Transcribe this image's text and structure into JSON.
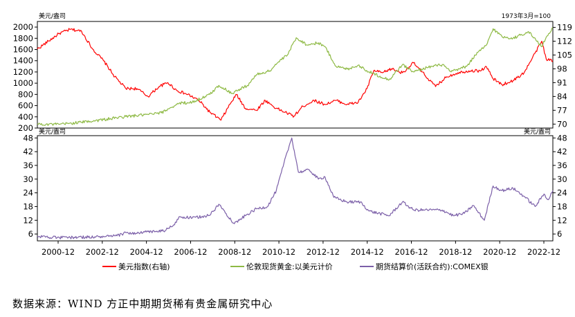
{
  "source_label": "数据来源：WIND 方正中期期货稀有贵金属研究中心",
  "chart_data": [
    {
      "type": "line",
      "panel": "top",
      "left_unit": "美元/盎司",
      "right_unit": "1973年3月=100",
      "left_axis": {
        "ylim": [
          200,
          2100
        ],
        "ticks": [
          200,
          400,
          600,
          800,
          1000,
          1200,
          1400,
          1600,
          1800,
          2000
        ]
      },
      "right_axis": {
        "ylim": [
          68,
          122
        ],
        "ticks": [
          70,
          77,
          84,
          91,
          98,
          105,
          112,
          119
        ]
      },
      "x_ticks": [
        "2000-12",
        "2002-12",
        "2004-12",
        "2006-12",
        "2008-12",
        "2010-12",
        "2012-12",
        "2014-12",
        "2016-12",
        "2018-12",
        "2020-12",
        "2022-12"
      ],
      "xlim": [
        2000.0,
        2023.3
      ],
      "series": [
        {
          "name": "美元指数(右轴)",
          "axis": "right",
          "color": "#ff0000",
          "points": [
            [
              2000.0,
              108
            ],
            [
              2000.5,
              112
            ],
            [
              2001.0,
              116
            ],
            [
              2001.5,
              118
            ],
            [
              2002.0,
              117
            ],
            [
              2002.5,
              108
            ],
            [
              2003.0,
              102
            ],
            [
              2003.5,
              94
            ],
            [
              2004.0,
              88
            ],
            [
              2004.5,
              88
            ],
            [
              2005.0,
              84
            ],
            [
              2005.5,
              89
            ],
            [
              2005.9,
              91
            ],
            [
              2006.3,
              87
            ],
            [
              2006.8,
              85
            ],
            [
              2007.3,
              82
            ],
            [
              2007.8,
              76
            ],
            [
              2008.3,
              72
            ],
            [
              2008.7,
              80
            ],
            [
              2009.0,
              85
            ],
            [
              2009.4,
              78
            ],
            [
              2009.9,
              77
            ],
            [
              2010.3,
              82
            ],
            [
              2010.8,
              78
            ],
            [
              2011.2,
              76
            ],
            [
              2011.6,
              74
            ],
            [
              2012.0,
              79
            ],
            [
              2012.5,
              82
            ],
            [
              2013.0,
              80
            ],
            [
              2013.5,
              82
            ],
            [
              2014.0,
              80
            ],
            [
              2014.5,
              81
            ],
            [
              2014.9,
              88
            ],
            [
              2015.2,
              97
            ],
            [
              2015.6,
              96
            ],
            [
              2016.0,
              98
            ],
            [
              2016.5,
              96
            ],
            [
              2017.0,
              101
            ],
            [
              2017.5,
              95
            ],
            [
              2018.0,
              89
            ],
            [
              2018.5,
              94
            ],
            [
              2019.0,
              96
            ],
            [
              2019.5,
              97
            ],
            [
              2020.0,
              97
            ],
            [
              2020.3,
              99
            ],
            [
              2020.6,
              93
            ],
            [
              2021.0,
              90
            ],
            [
              2021.5,
              92
            ],
            [
              2022.0,
              96
            ],
            [
              2022.5,
              106
            ],
            [
              2022.8,
              112
            ],
            [
              2023.0,
              103
            ],
            [
              2023.3,
              102
            ]
          ]
        },
        {
          "name": "伦敦现货黄金:以美元计价",
          "axis": "left",
          "color": "#8db943",
          "points": [
            [
              2000.0,
              272
            ],
            [
              2001.0,
              265
            ],
            [
              2002.0,
              305
            ],
            [
              2003.0,
              350
            ],
            [
              2004.0,
              405
            ],
            [
              2005.0,
              440
            ],
            [
              2005.6,
              470
            ],
            [
              2006.0,
              560
            ],
            [
              2006.4,
              640
            ],
            [
              2007.0,
              660
            ],
            [
              2007.8,
              800
            ],
            [
              2008.2,
              960
            ],
            [
              2008.8,
              820
            ],
            [
              2009.5,
              960
            ],
            [
              2009.9,
              1150
            ],
            [
              2010.5,
              1220
            ],
            [
              2010.9,
              1380
            ],
            [
              2011.3,
              1500
            ],
            [
              2011.7,
              1810
            ],
            [
              2012.2,
              1680
            ],
            [
              2012.7,
              1720
            ],
            [
              2013.0,
              1650
            ],
            [
              2013.5,
              1300
            ],
            [
              2014.0,
              1250
            ],
            [
              2014.5,
              1320
            ],
            [
              2015.0,
              1200
            ],
            [
              2015.9,
              1060
            ],
            [
              2016.5,
              1330
            ],
            [
              2017.0,
              1200
            ],
            [
              2017.6,
              1280
            ],
            [
              2018.3,
              1330
            ],
            [
              2018.7,
              1200
            ],
            [
              2019.4,
              1300
            ],
            [
              2019.8,
              1500
            ],
            [
              2020.3,
              1680
            ],
            [
              2020.6,
              1970
            ],
            [
              2021.0,
              1830
            ],
            [
              2021.5,
              1800
            ],
            [
              2022.2,
              1920
            ],
            [
              2022.8,
              1650
            ],
            [
              2023.0,
              1820
            ],
            [
              2023.3,
              1990
            ]
          ]
        }
      ]
    },
    {
      "type": "line",
      "panel": "bottom",
      "left_unit": "美元/盎司",
      "right_unit": "美元/盎司",
      "left_axis": {
        "ylim": [
          3,
          49
        ],
        "ticks": [
          6,
          12,
          18,
          24,
          30,
          36,
          42,
          48
        ]
      },
      "right_axis": {
        "ylim": [
          3,
          49
        ],
        "ticks": [
          6,
          12,
          18,
          24,
          30,
          36,
          42,
          48
        ]
      },
      "x_ticks": [
        "2000-12",
        "2002-12",
        "2004-12",
        "2006-12",
        "2008-12",
        "2010-12",
        "2012-12",
        "2014-12",
        "2016-12",
        "2018-12",
        "2020-12",
        "2022-12"
      ],
      "xlim": [
        2000.0,
        2023.3
      ],
      "series": [
        {
          "name": "期货结算价(活跃合约):COMEX银",
          "axis": "left",
          "color": "#7b5fa8",
          "points": [
            [
              2000.0,
              5.0
            ],
            [
              2001.0,
              4.4
            ],
            [
              2002.0,
              4.6
            ],
            [
              2003.0,
              4.8
            ],
            [
              2003.6,
              5.2
            ],
            [
              2004.0,
              6.6
            ],
            [
              2004.5,
              6.2
            ],
            [
              2005.0,
              7.0
            ],
            [
              2005.7,
              7.3
            ],
            [
              2006.2,
              10.0
            ],
            [
              2006.4,
              13.5
            ],
            [
              2007.0,
              13.0
            ],
            [
              2007.8,
              14.2
            ],
            [
              2008.2,
              19.0
            ],
            [
              2008.9,
              10.5
            ],
            [
              2009.4,
              14.0
            ],
            [
              2009.9,
              17.0
            ],
            [
              2010.4,
              18.0
            ],
            [
              2010.8,
              25.0
            ],
            [
              2011.3,
              42.0
            ],
            [
              2011.5,
              48.0
            ],
            [
              2011.8,
              33.0
            ],
            [
              2012.3,
              34.0
            ],
            [
              2012.7,
              30.0
            ],
            [
              2013.0,
              31.0
            ],
            [
              2013.4,
              22.0
            ],
            [
              2014.0,
              20.0
            ],
            [
              2014.6,
              20.0
            ],
            [
              2015.0,
              16.0
            ],
            [
              2015.9,
              14.0
            ],
            [
              2016.5,
              20.0
            ],
            [
              2017.0,
              16.5
            ],
            [
              2017.5,
              16.5
            ],
            [
              2018.3,
              16.5
            ],
            [
              2018.8,
              14.0
            ],
            [
              2019.3,
              15.0
            ],
            [
              2019.7,
              18.5
            ],
            [
              2020.2,
              12.0
            ],
            [
              2020.6,
              27.0
            ],
            [
              2021.0,
              25.0
            ],
            [
              2021.5,
              26.0
            ],
            [
              2022.0,
              22.5
            ],
            [
              2022.5,
              18.0
            ],
            [
              2022.9,
              23.5
            ],
            [
              2023.1,
              21.0
            ],
            [
              2023.3,
              25.0
            ]
          ]
        }
      ]
    }
  ],
  "legend": [
    {
      "label": "美元指数(右轴)",
      "color": "#ff0000"
    },
    {
      "label": "伦敦现货黄金:以美元计价",
      "color": "#8db943"
    },
    {
      "label": "期货结算价(活跃合约):COMEX银",
      "color": "#7b5fa8"
    }
  ]
}
